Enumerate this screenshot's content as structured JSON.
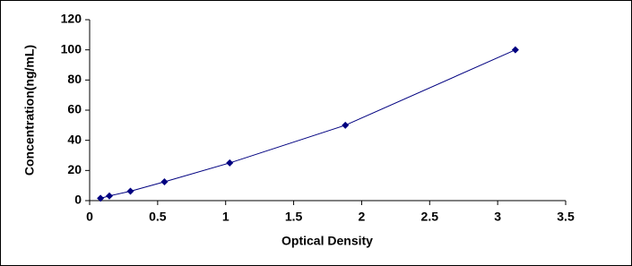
{
  "chart_data": {
    "type": "line",
    "x_label": "Optical Density",
    "y_label": "Concentration(ng/mL)",
    "series": [
      {
        "color": "#000080",
        "x": [
          0.08,
          0.145,
          0.3,
          0.55,
          1.03,
          1.88,
          3.13
        ],
        "values": [
          1.56,
          3.12,
          6.25,
          12.5,
          25,
          50,
          100
        ]
      }
    ],
    "xlim": [
      0,
      3.5
    ],
    "xticks": [
      0,
      0.5,
      1,
      1.5,
      2,
      2.5,
      3,
      3.5
    ],
    "ylim": [
      0,
      120
    ],
    "yticks": [
      0,
      20,
      40,
      60,
      80,
      100,
      120
    ],
    "grid": false
  }
}
